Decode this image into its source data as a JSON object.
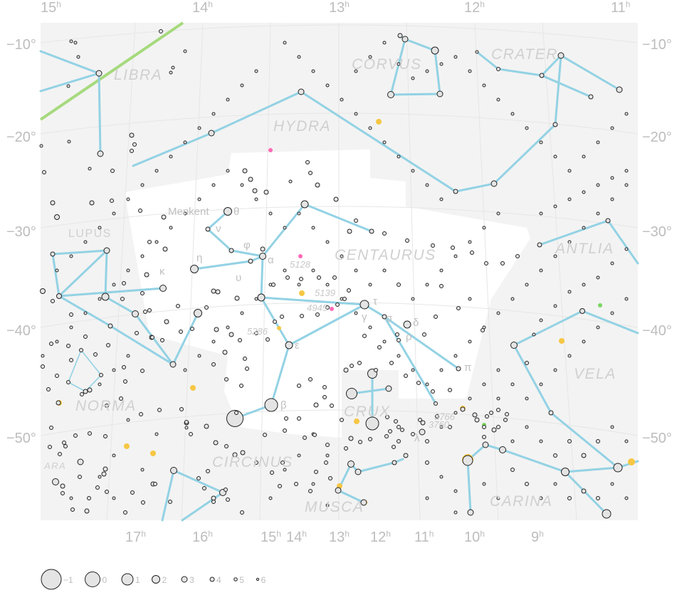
{
  "ra_labels": [
    {
      "text": "15",
      "unit": "h"
    },
    {
      "text": "14",
      "unit": "h"
    },
    {
      "text": "13",
      "unit": "h"
    },
    {
      "text": "12",
      "unit": "h"
    },
    {
      "text": "11",
      "unit": "h"
    }
  ],
  "ra_labels_bottom": [
    {
      "text": "17",
      "unit": "h"
    },
    {
      "text": "16",
      "unit": "h"
    },
    {
      "text": "15",
      "unit": "h"
    },
    {
      "text": "14",
      "unit": "h"
    },
    {
      "text": "13",
      "unit": "h"
    },
    {
      "text": "12",
      "unit": "h"
    },
    {
      "text": "11",
      "unit": "h"
    },
    {
      "text": "10",
      "unit": "h"
    },
    {
      "text": "9",
      "unit": "h"
    }
  ],
  "dec_labels": [
    "−10°",
    "−20°",
    "−30°",
    "−40°",
    "−50°"
  ],
  "constellations": [
    "LIBRA",
    "CORVUS",
    "CRATER",
    "HYDRA",
    "LUPUS",
    "CENTAURUS",
    "ANTLIA",
    "VELA",
    "NORMA",
    "CRUX",
    "CIRCINUS",
    "MUSCA",
    "CARINA",
    "ARA"
  ],
  "star_labels": [
    "Menkent",
    "θ",
    "ν",
    "φ",
    "η",
    "κ",
    "υ",
    "α",
    "5128",
    "5139",
    "4945",
    "τ",
    "γ",
    "σ",
    "δ",
    "ρ",
    "ε",
    "5286",
    "π",
    "β",
    "λ",
    "3766",
    "3760"
  ],
  "legend": {
    "magnitudes": [
      "−1",
      "0",
      "1",
      "2",
      "3",
      "4",
      "5",
      "6"
    ]
  },
  "colors": {
    "figure_lines": "#93d2e4",
    "ecliptic": "#a6da7d",
    "galaxy": "#ff6ab5",
    "cluster": "#f6c744",
    "nebula": "#7bd75f",
    "milky_way": "#f2f2f2",
    "background": "#ffffff"
  }
}
